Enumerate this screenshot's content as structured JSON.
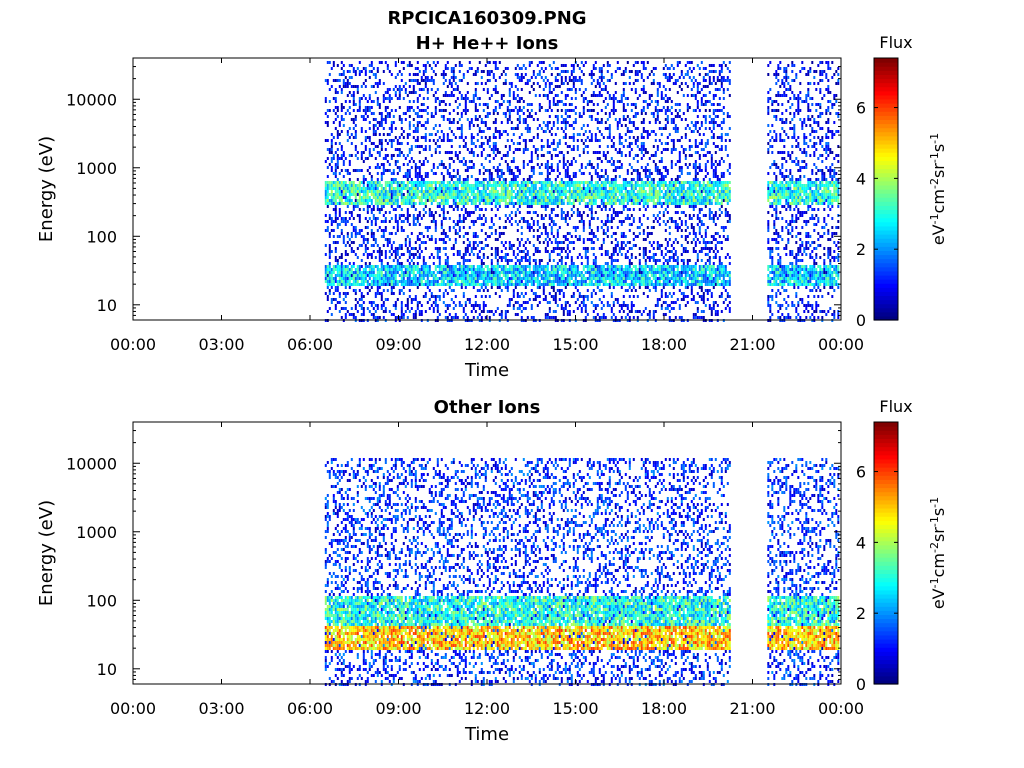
{
  "figure": {
    "title_line1": "RPCICA160309.PNG"
  },
  "chart_data": [
    {
      "type": "heatmap",
      "title": "H+ He++ Ions",
      "xlabel": "Time",
      "ylabel": "Energy (eV)",
      "x_tick_labels": [
        "00:00",
        "03:00",
        "06:00",
        "09:00",
        "12:00",
        "15:00",
        "18:00",
        "21:00",
        "00:00"
      ],
      "x_range_hours": [
        0,
        24
      ],
      "y_scale": "log",
      "y_tick_values": [
        10,
        100,
        1000,
        10000
      ],
      "y_tick_labels": [
        "10",
        "100",
        "1000",
        "10000"
      ],
      "y_range": [
        6,
        40000
      ],
      "colorbar": {
        "title": "Flux",
        "label": "eV-1cm-2sr-1s-1",
        "range": [
          0,
          7.4
        ],
        "tick_values": [
          0,
          2,
          4,
          6
        ],
        "tick_labels": [
          "0",
          "2",
          "4",
          "6"
        ],
        "colormap": "jet"
      },
      "data_intervals_hours": [
        [
          6.5,
          20.2
        ],
        [
          21.5,
          23.9
        ]
      ],
      "features": [
        {
          "energy_range_eV": [
            20,
            40
          ],
          "typical_flux": 2.5
        },
        {
          "energy_range_eV": [
            300,
            700
          ],
          "typical_flux": 3.0
        },
        {
          "energy_range_eV": [
            6,
            40000
          ],
          "typical_flux": 1.0
        }
      ]
    },
    {
      "type": "heatmap",
      "title": "Other Ions",
      "xlabel": "Time",
      "ylabel": "Energy (eV)",
      "x_tick_labels": [
        "00:00",
        "03:00",
        "06:00",
        "09:00",
        "12:00",
        "15:00",
        "18:00",
        "21:00",
        "00:00"
      ],
      "x_range_hours": [
        0,
        24
      ],
      "y_scale": "log",
      "y_tick_values": [
        10,
        100,
        1000,
        10000
      ],
      "y_tick_labels": [
        "10",
        "100",
        "1000",
        "10000"
      ],
      "y_range": [
        6,
        40000
      ],
      "colorbar": {
        "title": "Flux",
        "label": "eV-1cm-2sr-1s-1",
        "range": [
          0,
          7.4
        ],
        "tick_values": [
          0,
          2,
          4,
          6
        ],
        "tick_labels": [
          "0",
          "2",
          "4",
          "6"
        ],
        "colormap": "jet"
      },
      "data_intervals_hours": [
        [
          6.5,
          20.2
        ],
        [
          21.5,
          23.9
        ]
      ],
      "features": [
        {
          "energy_range_eV": [
            20,
            45
          ],
          "typical_flux": 5.0
        },
        {
          "energy_range_eV": [
            45,
            120
          ],
          "typical_flux": 3.0
        },
        {
          "energy_range_eV": [
            6,
            12000
          ],
          "typical_flux": 1.2
        }
      ]
    }
  ]
}
